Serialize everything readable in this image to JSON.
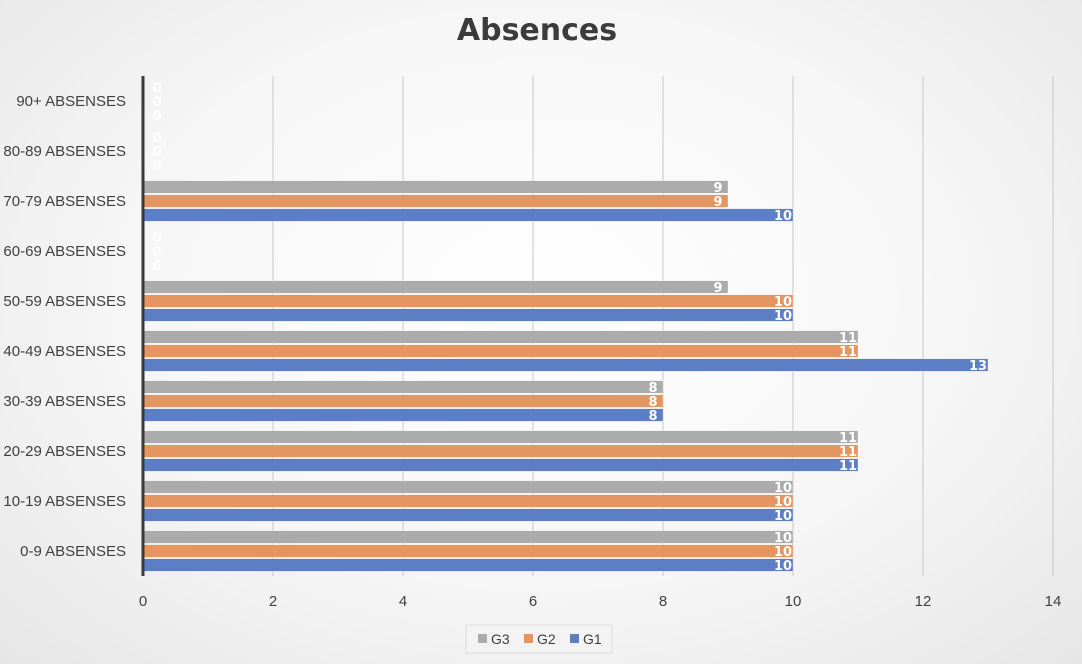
{
  "chart_data": {
    "type": "bar",
    "orientation": "horizontal",
    "title": "Absences",
    "categories": [
      "0-9 ABSENSES",
      "10-19 ABSENSES",
      "20-29 ABSENSES",
      "30-39 ABSENSES",
      "40-49 ABSENSES",
      "50-59 ABSENSES",
      "60-69 ABSENSES",
      "70-79 ABSENSES",
      "80-89 ABSENSES",
      "90+ ABSENSES"
    ],
    "series": [
      {
        "name": "G1",
        "values": [
          10,
          10,
          11,
          8,
          13,
          10,
          0,
          10,
          0,
          0
        ]
      },
      {
        "name": "G2",
        "values": [
          10,
          10,
          11,
          8,
          11,
          10,
          0,
          9,
          0,
          0
        ]
      },
      {
        "name": "G3",
        "values": [
          10,
          10,
          11,
          8,
          11,
          9,
          0,
          9,
          0,
          0
        ]
      }
    ],
    "xlim": [
      0,
      14
    ],
    "xticks": [
      0,
      2,
      4,
      6,
      8,
      10,
      12,
      14
    ],
    "grid": true,
    "data_labels": true,
    "legend_position": "bottom",
    "legend_order": [
      "G3",
      "G2",
      "G1"
    ],
    "colors": {
      "G1": "#5b7ec4",
      "G2": "#e59560",
      "G3": "#ababab",
      "label": "#ffffff"
    }
  }
}
